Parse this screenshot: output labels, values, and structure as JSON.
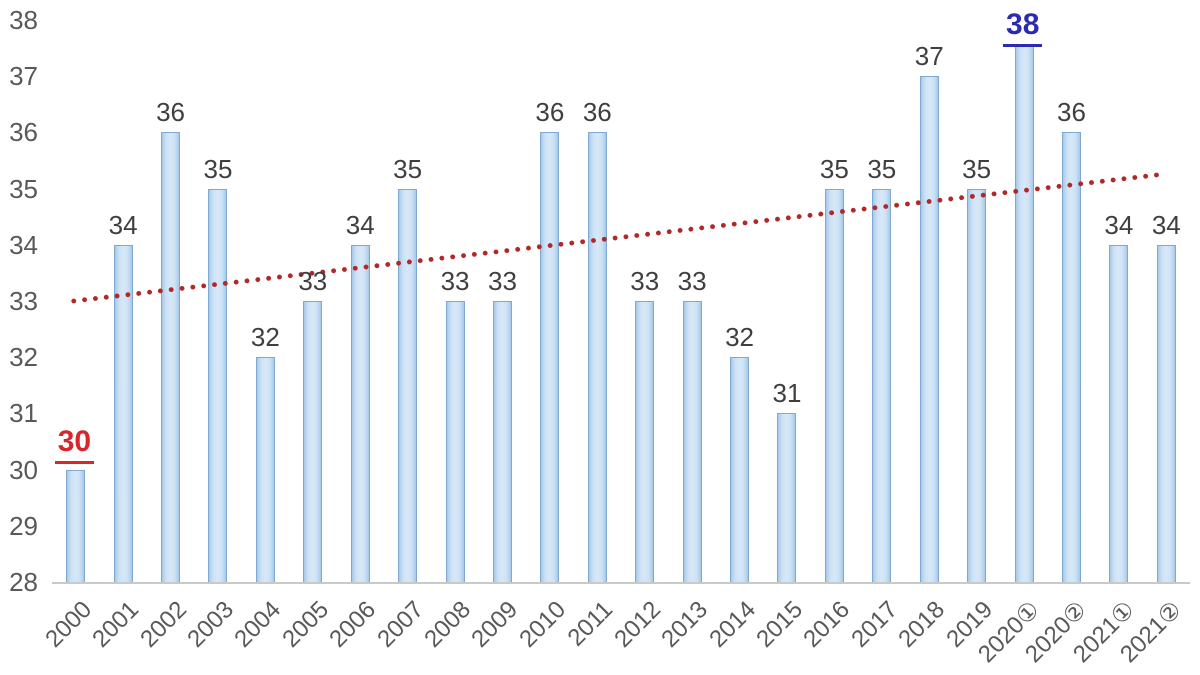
{
  "chart_data": {
    "type": "bar",
    "title": "",
    "categories": [
      "2000",
      "2001",
      "2002",
      "2003",
      "2004",
      "2005",
      "2006",
      "2007",
      "2008",
      "2009",
      "2010",
      "2011",
      "2012",
      "2013",
      "2014",
      "2015",
      "2016",
      "2017",
      "2018",
      "2019",
      "2020①",
      "2020②",
      "2021①",
      "2021②"
    ],
    "values": [
      30,
      34,
      36,
      35,
      32,
      33,
      34,
      35,
      33,
      33,
      36,
      36,
      33,
      33,
      32,
      31,
      35,
      35,
      37,
      35,
      38,
      36,
      34,
      34
    ],
    "xlabel": "",
    "ylabel": "",
    "ylim": [
      28,
      38
    ],
    "yticks": [
      28,
      29,
      30,
      31,
      32,
      33,
      34,
      35,
      36,
      37,
      38
    ],
    "grid": false,
    "legend": "none",
    "bar_fill": "#cde2f5",
    "bar_border": "#7fa9d1",
    "value_label_color": "#3f3f3f",
    "axis_label_color": "#595959",
    "axis_line_color": "#c9c9c9",
    "trendline": {
      "style": "dotted",
      "color": "#b02828",
      "start_value": 33.0,
      "end_value": 35.25
    },
    "annotations": [
      {
        "index": 0,
        "label": "30",
        "color": "#d8262b",
        "underline": true,
        "bold": true
      },
      {
        "index": 20,
        "label": "38",
        "color": "#2b2bb2",
        "underline": true,
        "bold": true
      }
    ]
  }
}
